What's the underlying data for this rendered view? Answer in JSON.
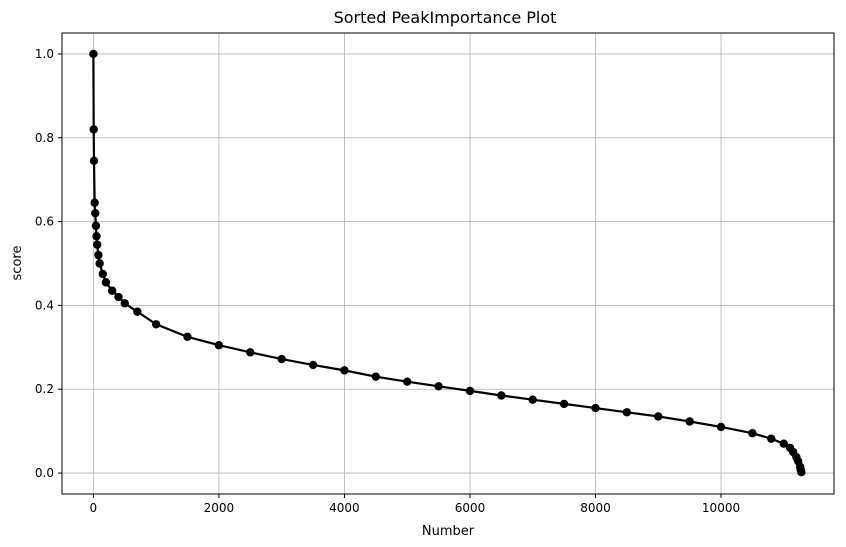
{
  "chart_data": {
    "type": "line",
    "title": "Sorted PeakImportance Plot",
    "xlabel": "Number",
    "ylabel": "score",
    "xlim": [
      -500,
      11800
    ],
    "ylim": [
      -0.05,
      1.05
    ],
    "xticks": [
      0,
      2000,
      4000,
      6000,
      8000,
      10000
    ],
    "yticks": [
      0.0,
      0.2,
      0.4,
      0.6,
      0.8,
      1.0
    ],
    "xtick_labels": [
      "0",
      "2000",
      "4000",
      "6000",
      "8000",
      "10000"
    ],
    "ytick_labels": [
      "0.0",
      "0.2",
      "0.4",
      "0.6",
      "0.8",
      "1.0"
    ],
    "grid": true,
    "marker": "o",
    "color": "#000000",
    "series": [
      {
        "x": [
          0,
          5,
          10,
          20,
          30,
          40,
          50,
          60,
          80,
          100,
          150,
          200,
          300,
          400,
          500,
          700,
          1000,
          1500,
          2000,
          2500,
          3000,
          3500,
          4000,
          4500,
          5000,
          5500,
          6000,
          6500,
          7000,
          7500,
          8000,
          8500,
          9000,
          9500,
          10000,
          10500,
          10800,
          11000,
          11100,
          11150,
          11200,
          11230,
          11260,
          11270,
          11280
        ],
        "y": [
          1.0,
          0.82,
          0.745,
          0.645,
          0.62,
          0.59,
          0.565,
          0.545,
          0.52,
          0.5,
          0.475,
          0.455,
          0.435,
          0.42,
          0.405,
          0.385,
          0.355,
          0.325,
          0.305,
          0.288,
          0.272,
          0.258,
          0.245,
          0.23,
          0.218,
          0.207,
          0.196,
          0.185,
          0.175,
          0.165,
          0.155,
          0.145,
          0.135,
          0.123,
          0.11,
          0.095,
          0.082,
          0.07,
          0.06,
          0.05,
          0.038,
          0.028,
          0.015,
          0.008,
          0.002
        ]
      }
    ]
  }
}
